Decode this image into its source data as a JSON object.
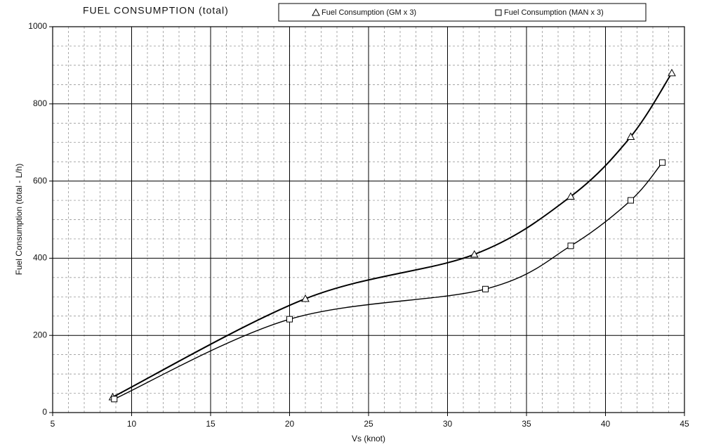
{
  "chart_data": {
    "type": "line",
    "title": "FUEL CONSUMPTION (total)",
    "x_label": "Vs (knot)",
    "y_label": "Fuel Consumption (total - L/h)",
    "series": [
      {
        "name": "Fuel Consumption (GM x 3)",
        "marker": "triangle",
        "color": "#000000",
        "x": [
          8.8,
          21,
          31.7,
          37.8,
          41.6,
          44.2
        ],
        "values": [
          40,
          295,
          410,
          560,
          715,
          880
        ]
      },
      {
        "name": "Fuel Consumption (MAN x 3)",
        "marker": "square",
        "color": "#000000",
        "x": [
          8.9,
          20,
          32.4,
          37.8,
          41.6,
          43.6
        ],
        "values": [
          35,
          242,
          320,
          432,
          550,
          648
        ]
      }
    ],
    "xlim": [
      5,
      45
    ],
    "xticks": [
      5,
      10,
      15,
      20,
      25,
      30,
      35,
      40,
      45
    ],
    "ylim": [
      0,
      1000
    ],
    "yticks": [
      0,
      200,
      400,
      600,
      800,
      1000
    ],
    "grid": true
  }
}
